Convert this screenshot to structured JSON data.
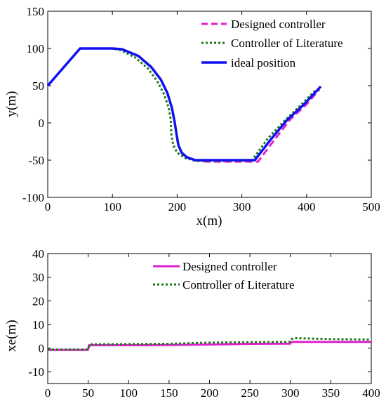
{
  "chart_data": [
    {
      "type": "line",
      "title": "",
      "xlabel": "x(m)",
      "ylabel": "y(m)",
      "xlim": [
        0,
        500
      ],
      "ylim": [
        -100,
        150
      ],
      "xticks": [
        0,
        100,
        200,
        300,
        400,
        500
      ],
      "yticks": [
        -100,
        -50,
        0,
        50,
        100,
        150
      ],
      "grid": false,
      "legend_position": "top-right",
      "series": [
        {
          "name": "Designed controller",
          "color": "#e020d0",
          "style": "dashed",
          "x": [
            0,
            50,
            100,
            115,
            140,
            160,
            175,
            185,
            192,
            196,
            199,
            202,
            207,
            215,
            228,
            245,
            270,
            300,
            325,
            350,
            375,
            400,
            420
          ],
          "y": [
            50,
            100,
            100,
            99,
            90,
            75,
            58,
            40,
            20,
            2,
            -15,
            -30,
            -40,
            -46,
            -50,
            -52,
            -52,
            -52,
            -52,
            -23,
            5,
            25,
            45
          ]
        },
        {
          "name": "Controller of Literature",
          "color": "#1a7a1a",
          "style": "dotted",
          "x": [
            0,
            50,
            100,
            112,
            135,
            155,
            170,
            180,
            187,
            190,
            191,
            194,
            200,
            212,
            228,
            250,
            280,
            315,
            340,
            365,
            390,
            415
          ],
          "y": [
            50,
            100,
            100,
            98,
            88,
            73,
            55,
            38,
            20,
            5,
            -15,
            -30,
            -40,
            -47,
            -51,
            -51,
            -51,
            -51,
            -21,
            2,
            23,
            45
          ]
        },
        {
          "name": "ideal position",
          "color": "#1010f0",
          "style": "solid",
          "x": [
            0,
            50,
            100,
            115,
            140,
            160,
            175,
            185,
            192,
            196,
            199,
            202,
            207,
            215,
            228,
            245,
            270,
            300,
            320,
            345,
            370,
            395,
            422
          ],
          "y": [
            50,
            100,
            100,
            99,
            90,
            75,
            58,
            40,
            20,
            2,
            -15,
            -30,
            -40,
            -46,
            -50,
            -50,
            -50,
            -50,
            -50,
            -22,
            4,
            24,
            49
          ]
        }
      ]
    },
    {
      "type": "line",
      "title": "",
      "xlabel": "",
      "ylabel": "xe(m)",
      "xlim": [
        0,
        400
      ],
      "ylim": [
        -15,
        40
      ],
      "xticks": [
        0,
        50,
        100,
        150,
        200,
        250,
        300,
        350,
        400
      ],
      "yticks": [
        -10,
        0,
        10,
        20,
        30,
        40
      ],
      "grid": false,
      "legend_position": "top-center",
      "series": [
        {
          "name": "Designed controller",
          "color": "#e020d0",
          "style": "solid",
          "x": [
            0,
            48,
            50,
            51,
            100,
            150,
            200,
            250,
            300,
            301,
            302,
            350,
            400
          ],
          "y": [
            -0.8,
            -0.8,
            -0.7,
            1.2,
            1.2,
            1.3,
            1.5,
            1.8,
            1.9,
            2.6,
            2.6,
            2.6,
            2.6
          ]
        },
        {
          "name": "Controller of Literature",
          "color": "#1a7a1a",
          "style": "dotted",
          "x": [
            0,
            48,
            50,
            52,
            100,
            150,
            200,
            250,
            299,
            301,
            305,
            350,
            400
          ],
          "y": [
            -0.6,
            -0.6,
            -0.4,
            1.6,
            1.7,
            1.8,
            2.3,
            2.5,
            2.6,
            3.8,
            4.2,
            3.8,
            3.6
          ]
        }
      ]
    }
  ]
}
